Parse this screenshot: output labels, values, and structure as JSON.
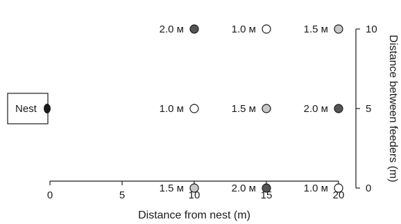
{
  "chart_data": {
    "type": "scatter",
    "xlabel": "Distance from nest (m)",
    "ylabel": "Distance between feeders (m)",
    "xlim": [
      0,
      20
    ],
    "ylim": [
      0,
      10
    ],
    "x_ticks": [
      "0",
      "5",
      "10",
      "15",
      "20"
    ],
    "y_ticks": [
      "0",
      "5",
      "10"
    ],
    "nest": {
      "label": "Nest",
      "x": 0,
      "y": 5
    },
    "value_colors": {
      "1.0": "#ffffff",
      "1.5": "#c8c8c8",
      "2.0": "#555555"
    },
    "points": [
      {
        "x": 10,
        "y": 10,
        "label": "2.0 м",
        "value": 2.0
      },
      {
        "x": 15,
        "y": 10,
        "label": "1.0 м",
        "value": 1.0
      },
      {
        "x": 20,
        "y": 10,
        "label": "1.5 м",
        "value": 1.5
      },
      {
        "x": 10,
        "y": 5,
        "label": "1.0 м",
        "value": 1.0
      },
      {
        "x": 15,
        "y": 5,
        "label": "1.5 м",
        "value": 1.5
      },
      {
        "x": 20,
        "y": 5,
        "label": "2.0 м",
        "value": 2.0
      },
      {
        "x": 10,
        "y": 0,
        "label": "1.5 м",
        "value": 1.5
      },
      {
        "x": 15,
        "y": 0,
        "label": "2.0 м",
        "value": 2.0
      },
      {
        "x": 20,
        "y": 0,
        "label": "1.0 м",
        "value": 1.0
      }
    ]
  }
}
